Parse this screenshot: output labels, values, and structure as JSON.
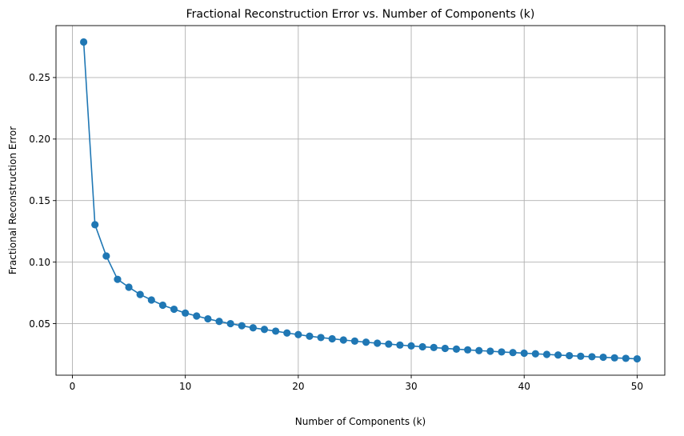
{
  "chart_data": {
    "type": "line",
    "title": "Fractional Reconstruction Error vs. Number of Components (k)",
    "xlabel": "Number of Components (k)",
    "ylabel": "Fractional Reconstruction Error",
    "xlim": [
      -1.45,
      52.45
    ],
    "ylim": [
      0.0081,
      0.2922
    ],
    "xticks": [
      0,
      10,
      20,
      30,
      40,
      50
    ],
    "xtick_labels": [
      "0",
      "10",
      "20",
      "30",
      "40",
      "50"
    ],
    "yticks": [
      0.05,
      0.1,
      0.15,
      0.2,
      0.25
    ],
    "ytick_labels": [
      "0.05",
      "0.10",
      "0.15",
      "0.20",
      "0.25"
    ],
    "grid": true,
    "marker": "circle",
    "color": "#1f77b4",
    "series": [
      {
        "x": [
          1,
          2,
          3,
          4,
          5,
          6,
          7,
          8,
          9,
          10,
          11,
          12,
          13,
          14,
          15,
          16,
          17,
          18,
          19,
          20,
          21,
          22,
          23,
          24,
          25,
          26,
          27,
          28,
          29,
          30,
          31,
          32,
          33,
          34,
          35,
          36,
          37,
          38,
          39,
          40,
          41,
          42,
          43,
          44,
          45,
          46,
          47,
          48,
          49,
          50
        ],
        "y": [
          0.2789,
          0.1304,
          0.105,
          0.086,
          0.0796,
          0.0737,
          0.0692,
          0.065,
          0.0617,
          0.0586,
          0.0562,
          0.0539,
          0.0518,
          0.05,
          0.0483,
          0.0466,
          0.0453,
          0.0439,
          0.0424,
          0.0411,
          0.0398,
          0.0387,
          0.0377,
          0.0367,
          0.0358,
          0.0349,
          0.0341,
          0.0334,
          0.0326,
          0.0319,
          0.0312,
          0.0306,
          0.0299,
          0.0293,
          0.0287,
          0.0281,
          0.0276,
          0.027,
          0.0265,
          0.026,
          0.0255,
          0.025,
          0.0245,
          0.024,
          0.0235,
          0.0231,
          0.0227,
          0.0222,
          0.0218,
          0.0214
        ]
      }
    ]
  }
}
